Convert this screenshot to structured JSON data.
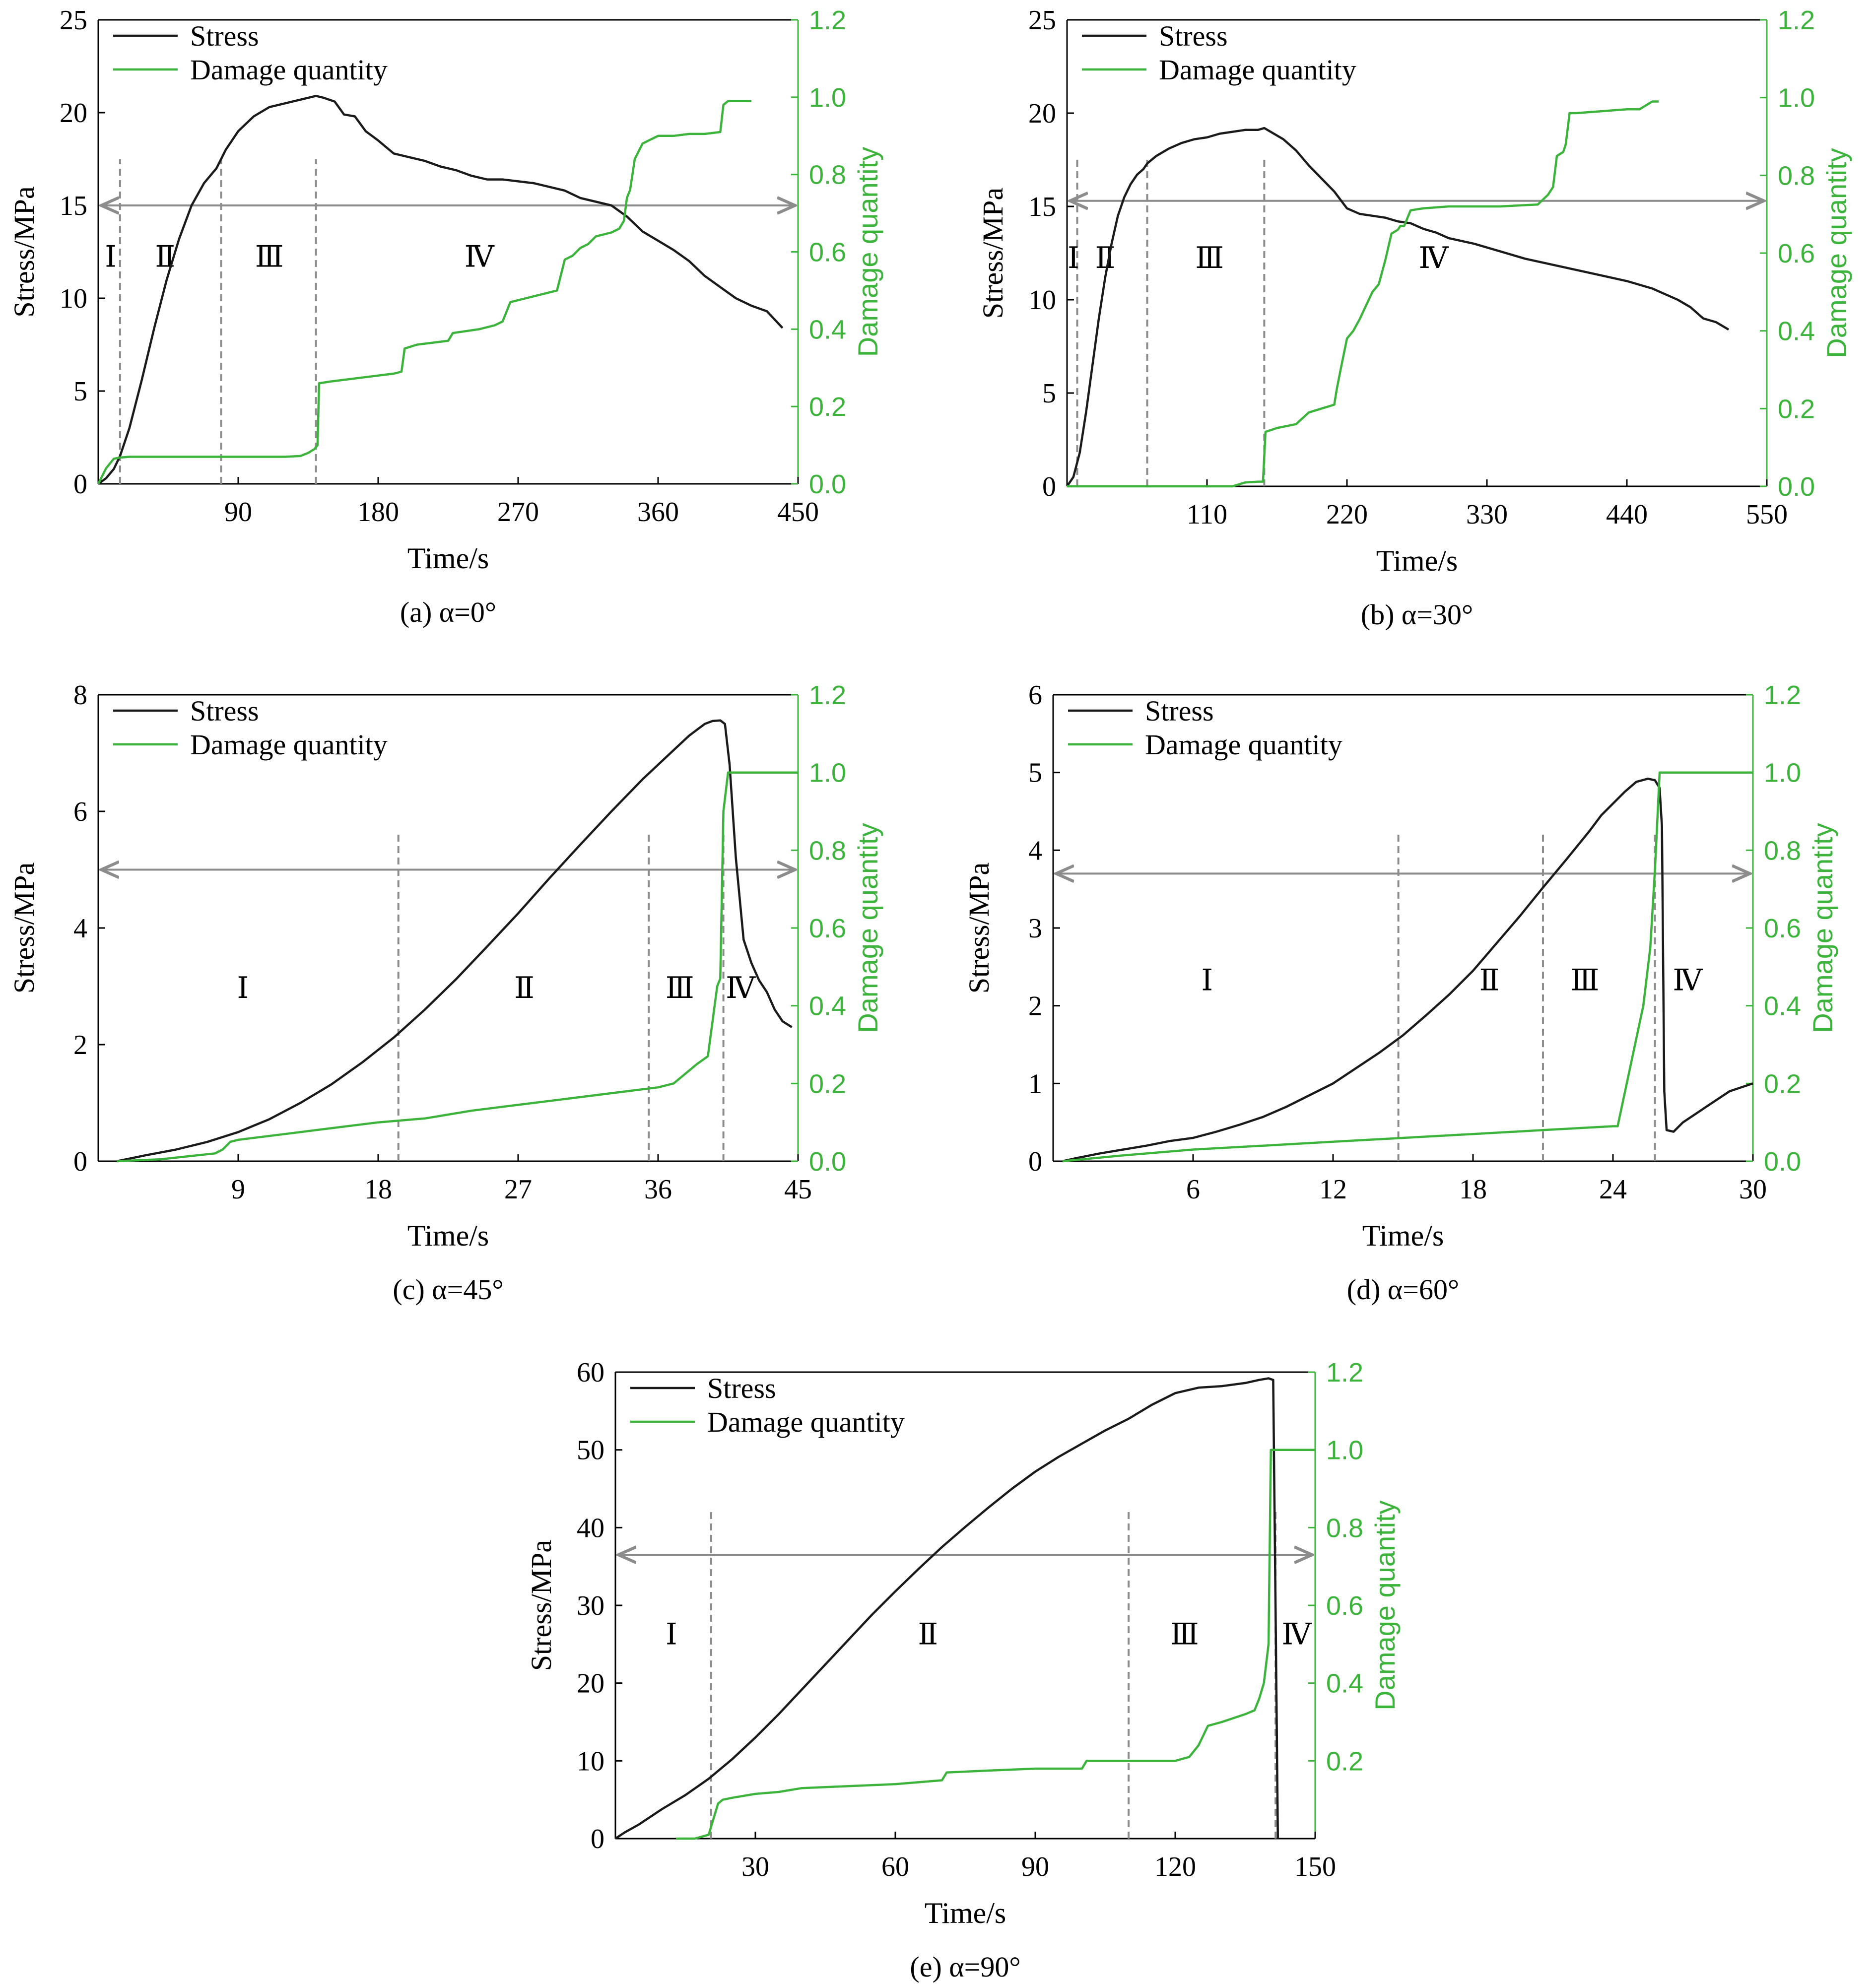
{
  "colors": {
    "stress": "#1a1a1a",
    "damage": "#3cb43c",
    "guide": "#8c8c8c"
  },
  "chart_data": [
    {
      "type": "line",
      "caption": "(a) α=0°",
      "xlabel": "Time/s",
      "ylabel": "Stress/MPa",
      "y2label": "Damage quantity",
      "xlim": [
        0,
        450
      ],
      "ylim": [
        0,
        25
      ],
      "y2lim": [
        0,
        1.2
      ],
      "xticks": [
        90,
        180,
        270,
        360,
        450
      ],
      "yticks": [
        0,
        5,
        10,
        15,
        20,
        25
      ],
      "y2ticks": [
        0,
        0.2,
        0.4,
        0.6,
        0.8,
        1.0,
        1.2
      ],
      "legend": [
        "Stress",
        "Damage quantity"
      ],
      "stages": [
        "Ⅰ",
        "Ⅱ",
        "Ⅲ",
        "Ⅳ"
      ],
      "stage_label_x": [
        8,
        43,
        110,
        245
      ],
      "stage_label_y": 11.7,
      "boundaries": [
        14,
        79,
        140
      ],
      "arrow_y": 15,
      "series": [
        {
          "name": "Stress",
          "axis": "left",
          "x": [
            0,
            5,
            10,
            14,
            20,
            28,
            36,
            44,
            52,
            60,
            68,
            76,
            82,
            90,
            100,
            110,
            120,
            130,
            140,
            145,
            152,
            158,
            165,
            172,
            180,
            190,
            200,
            210,
            220,
            230,
            240,
            250,
            260,
            270,
            280,
            290,
            300,
            310,
            320,
            330,
            340,
            350,
            360,
            370,
            380,
            390,
            400,
            410,
            420,
            430,
            440
          ],
          "values": [
            0,
            0.3,
            0.8,
            1.5,
            3.0,
            5.6,
            8.4,
            11.0,
            13.2,
            15.0,
            16.2,
            17.0,
            18.0,
            19.0,
            19.8,
            20.3,
            20.5,
            20.7,
            20.9,
            20.8,
            20.6,
            19.9,
            19.8,
            19.0,
            18.5,
            17.8,
            17.6,
            17.4,
            17.1,
            16.9,
            16.6,
            16.4,
            16.4,
            16.3,
            16.2,
            16.0,
            15.8,
            15.4,
            15.2,
            15.0,
            14.4,
            13.6,
            13.1,
            12.6,
            12.0,
            11.2,
            10.6,
            10.0,
            9.6,
            9.3,
            8.4
          ]
        },
        {
          "name": "Damage quantity",
          "axis": "right",
          "x": [
            0,
            5,
            10,
            14,
            20,
            40,
            60,
            80,
            100,
            120,
            130,
            135,
            139,
            141,
            142,
            150,
            160,
            170,
            180,
            190,
            195,
            197,
            205,
            215,
            225,
            228,
            245,
            255,
            260,
            265,
            275,
            285,
            295,
            300,
            305,
            310,
            315,
            320,
            325,
            330,
            335,
            338,
            340,
            342,
            345,
            350,
            355,
            360,
            370,
            380,
            390,
            400,
            402,
            405,
            410,
            415,
            420
          ],
          "values": [
            0,
            0.04,
            0.065,
            0.068,
            0.07,
            0.07,
            0.07,
            0.07,
            0.07,
            0.07,
            0.072,
            0.08,
            0.09,
            0.1,
            0.26,
            0.265,
            0.27,
            0.275,
            0.28,
            0.285,
            0.29,
            0.35,
            0.36,
            0.365,
            0.37,
            0.39,
            0.4,
            0.41,
            0.42,
            0.47,
            0.48,
            0.49,
            0.5,
            0.58,
            0.59,
            0.61,
            0.62,
            0.64,
            0.645,
            0.65,
            0.66,
            0.68,
            0.74,
            0.76,
            0.84,
            0.88,
            0.89,
            0.9,
            0.9,
            0.905,
            0.905,
            0.91,
            0.98,
            0.99,
            0.99,
            0.99,
            0.99
          ]
        }
      ]
    },
    {
      "type": "line",
      "caption": "(b) α=30°",
      "xlabel": "Time/s",
      "ylabel": "Stress/MPa",
      "y2label": "Damage quantity",
      "xlim": [
        0,
        550
      ],
      "ylim": [
        0,
        25
      ],
      "y2lim": [
        0,
        1.2
      ],
      "xticks": [
        110,
        220,
        330,
        440,
        550
      ],
      "yticks": [
        0,
        5,
        10,
        15,
        20,
        25
      ],
      "y2ticks": [
        0,
        0.2,
        0.4,
        0.6,
        0.8,
        1.0,
        1.2
      ],
      "legend": [
        "Stress",
        "Damage quantity"
      ],
      "stages": [
        "Ⅰ",
        "Ⅱ",
        "Ⅲ",
        "Ⅳ"
      ],
      "stage_label_x": [
        5,
        30,
        112,
        288
      ],
      "stage_label_y": 11.7,
      "boundaries": [
        8,
        63,
        155
      ],
      "arrow_y": 15.3,
      "series": [
        {
          "name": "Stress",
          "axis": "left",
          "x": [
            0,
            5,
            10,
            15,
            20,
            25,
            30,
            35,
            40,
            45,
            50,
            55,
            60,
            63,
            70,
            80,
            90,
            100,
            110,
            120,
            130,
            140,
            150,
            155,
            160,
            170,
            180,
            190,
            200,
            210,
            220,
            230,
            240,
            250,
            260,
            270,
            280,
            290,
            300,
            320,
            340,
            360,
            380,
            400,
            420,
            440,
            460,
            480,
            490,
            500,
            510,
            520
          ],
          "values": [
            0,
            0.5,
            1.8,
            4.0,
            6.5,
            9.0,
            11.2,
            13.0,
            14.5,
            15.5,
            16.2,
            16.7,
            17.0,
            17.3,
            17.7,
            18.1,
            18.4,
            18.6,
            18.7,
            18.9,
            19.0,
            19.1,
            19.1,
            19.2,
            19.0,
            18.6,
            18.0,
            17.2,
            16.5,
            15.8,
            14.9,
            14.6,
            14.5,
            14.4,
            14.2,
            14.1,
            13.8,
            13.6,
            13.3,
            13.0,
            12.6,
            12.2,
            11.9,
            11.6,
            11.3,
            11.0,
            10.6,
            10.0,
            9.6,
            9.0,
            8.8,
            8.4
          ]
        },
        {
          "name": "Damage quantity",
          "axis": "right",
          "x": [
            0,
            20,
            50,
            80,
            110,
            130,
            140,
            150,
            154,
            156,
            165,
            180,
            190,
            200,
            210,
            212,
            215,
            220,
            225,
            230,
            240,
            245,
            250,
            255,
            260,
            262,
            265,
            270,
            280,
            300,
            340,
            370,
            378,
            382,
            385,
            390,
            392,
            395,
            400,
            420,
            440,
            450,
            455,
            460,
            465
          ],
          "values": [
            0,
            0.0,
            0.0,
            0.0,
            0.0,
            0.0,
            0.01,
            0.012,
            0.012,
            0.14,
            0.15,
            0.16,
            0.19,
            0.2,
            0.21,
            0.25,
            0.3,
            0.38,
            0.4,
            0.43,
            0.5,
            0.52,
            0.58,
            0.65,
            0.66,
            0.67,
            0.67,
            0.71,
            0.715,
            0.72,
            0.72,
            0.725,
            0.75,
            0.77,
            0.85,
            0.86,
            0.88,
            0.96,
            0.96,
            0.965,
            0.97,
            0.97,
            0.98,
            0.99,
            0.99
          ]
        }
      ]
    },
    {
      "type": "line",
      "caption": "(c) α=45°",
      "xlabel": "Time/s",
      "ylabel": "Stress/MPa",
      "y2label": "Damage quantity",
      "xlim": [
        0,
        45
      ],
      "ylim": [
        0,
        8
      ],
      "y2lim": [
        0,
        1.2
      ],
      "xticks": [
        9,
        18,
        27,
        36,
        45
      ],
      "yticks": [
        0,
        2,
        4,
        6,
        8
      ],
      "y2ticks": [
        0,
        0.2,
        0.4,
        0.6,
        0.8,
        1.0,
        1.2
      ],
      "legend": [
        "Stress",
        "Damage quantity"
      ],
      "stages": [
        "Ⅰ",
        "Ⅱ",
        "Ⅲ",
        "Ⅳ"
      ],
      "stage_label_x": [
        9.3,
        27.4,
        37.4,
        41.3
      ],
      "stage_label_y": 2.8,
      "boundaries": [
        19.3,
        35.4,
        40.2
      ],
      "arrow_y": 5,
      "series": [
        {
          "name": "Stress",
          "axis": "left",
          "x": [
            1.2,
            3,
            5,
            7,
            9,
            11,
            13,
            15,
            17,
            19,
            21,
            23,
            25,
            27,
            29,
            31,
            33,
            35,
            37,
            38,
            39,
            39.5,
            40,
            40.3,
            40.6,
            41,
            41.5,
            42,
            42.5,
            43,
            43.5,
            44,
            44.6
          ],
          "values": [
            0,
            0.1,
            0.2,
            0.33,
            0.5,
            0.72,
            1.0,
            1.32,
            1.7,
            2.12,
            2.6,
            3.12,
            3.68,
            4.25,
            4.85,
            5.43,
            6.0,
            6.55,
            7.05,
            7.3,
            7.5,
            7.55,
            7.56,
            7.5,
            6.8,
            5.2,
            3.8,
            3.4,
            3.1,
            2.9,
            2.6,
            2.4,
            2.3
          ]
        },
        {
          "name": "Damage quantity",
          "axis": "right",
          "x": [
            1.2,
            4,
            7.5,
            8,
            8.5,
            9,
            12,
            15,
            18,
            21,
            24,
            27,
            30,
            33,
            36,
            37,
            38.5,
            39.2,
            39.8,
            40,
            40.2,
            40.5,
            42,
            44,
            45
          ],
          "values": [
            0,
            0.005,
            0.02,
            0.03,
            0.05,
            0.055,
            0.07,
            0.085,
            0.1,
            0.11,
            0.13,
            0.145,
            0.16,
            0.175,
            0.19,
            0.2,
            0.25,
            0.27,
            0.45,
            0.47,
            0.9,
            1.0,
            1.0,
            1.0,
            1.0
          ]
        }
      ]
    },
    {
      "type": "line",
      "caption": "(d) α=60°",
      "xlabel": "Time/s",
      "ylabel": "Stress/MPa",
      "y2label": "Damage quantity",
      "xlim": [
        0,
        30
      ],
      "ylim": [
        0,
        6
      ],
      "y2lim": [
        0,
        1.2
      ],
      "xticks": [
        6,
        12,
        18,
        24,
        30
      ],
      "yticks": [
        0,
        1,
        2,
        3,
        4,
        5,
        6
      ],
      "y2ticks": [
        0,
        0.2,
        0.4,
        0.6,
        0.8,
        1.0,
        1.2
      ],
      "legend": [
        "Stress",
        "Damage quantity"
      ],
      "stages": [
        "Ⅰ",
        "Ⅱ",
        "Ⅲ",
        "Ⅳ"
      ],
      "stage_label_x": [
        6.6,
        18.7,
        22.8,
        27.2
      ],
      "stage_label_y": 2.2,
      "boundaries": [
        14.8,
        21.0,
        25.8
      ],
      "arrow_y": 3.7,
      "series": [
        {
          "name": "Stress",
          "axis": "left",
          "x": [
            0.4,
            1,
            2,
            3,
            4,
            5,
            6,
            7,
            8,
            9,
            10,
            11,
            12,
            13,
            14,
            15,
            16,
            17,
            18,
            19,
            20,
            21,
            22,
            23,
            23.5,
            24,
            24.5,
            25,
            25.5,
            25.8,
            26,
            26.1,
            26.2,
            26.3,
            26.6,
            27,
            28,
            29,
            30
          ],
          "values": [
            0,
            0.04,
            0.1,
            0.15,
            0.2,
            0.26,
            0.3,
            0.38,
            0.47,
            0.57,
            0.7,
            0.85,
            1.0,
            1.2,
            1.4,
            1.62,
            1.88,
            2.15,
            2.45,
            2.8,
            3.15,
            3.52,
            3.88,
            4.25,
            4.45,
            4.6,
            4.75,
            4.88,
            4.92,
            4.9,
            4.8,
            4.3,
            0.9,
            0.4,
            0.38,
            0.5,
            0.7,
            0.9,
            1.0
          ]
        },
        {
          "name": "Damage quantity",
          "axis": "right",
          "x": [
            0.4,
            3,
            6,
            9,
            12,
            15,
            18,
            21,
            24,
            24.2,
            25.3,
            25.6,
            25.8,
            26,
            28,
            30
          ],
          "values": [
            0,
            0.015,
            0.03,
            0.04,
            0.05,
            0.06,
            0.07,
            0.08,
            0.09,
            0.09,
            0.4,
            0.55,
            0.75,
            1.0,
            1.0,
            1.0
          ]
        }
      ]
    },
    {
      "type": "line",
      "caption": "(e) α=90°",
      "xlabel": "Time/s",
      "ylabel": "Stress/MPa",
      "y2label": "Damage quantity",
      "xlim": [
        0,
        150
      ],
      "ylim": [
        0,
        60
      ],
      "y2lim": [
        0,
        1.2
      ],
      "xticks": [
        30,
        60,
        90,
        120,
        150
      ],
      "yticks": [
        0,
        10,
        20,
        30,
        40,
        50,
        60
      ],
      "y2ticks": [
        0.2,
        0.4,
        0.6,
        0.8,
        1.0,
        1.2
      ],
      "legend": [
        "Stress",
        "Damage quantity"
      ],
      "stages": [
        "Ⅰ",
        "Ⅱ",
        "Ⅲ",
        "Ⅳ"
      ],
      "stage_label_x": [
        12,
        67,
        122,
        146
      ],
      "stage_label_y": 25,
      "boundaries": [
        20.5,
        110,
        141.5
      ],
      "arrow_y": 36.5,
      "series": [
        {
          "name": "Stress",
          "axis": "left",
          "x": [
            0,
            2,
            5,
            10,
            15,
            20,
            25,
            30,
            35,
            40,
            45,
            50,
            55,
            60,
            65,
            70,
            75,
            80,
            85,
            90,
            95,
            100,
            105,
            110,
            115,
            120,
            125,
            130,
            135,
            138,
            140,
            141,
            141.5,
            142
          ],
          "values": [
            0,
            0.8,
            1.8,
            3.8,
            5.6,
            7.7,
            10.2,
            13.0,
            16.0,
            19.2,
            22.4,
            25.6,
            28.8,
            31.8,
            34.7,
            37.5,
            40.1,
            42.6,
            45.0,
            47.2,
            49.1,
            50.8,
            52.5,
            54.0,
            55.8,
            57.3,
            58.0,
            58.2,
            58.6,
            59.0,
            59.2,
            59.0,
            30,
            0
          ]
        },
        {
          "name": "Damage quantity",
          "axis": "right",
          "x": [
            13,
            17,
            20,
            21,
            22,
            23,
            25,
            30,
            35,
            40,
            50,
            60,
            70,
            71,
            80,
            90,
            100,
            101,
            110,
            120,
            123,
            125,
            127,
            130,
            135,
            137,
            138,
            139,
            140,
            140.5,
            141,
            142,
            150
          ],
          "values": [
            0,
            0.0,
            0.01,
            0.05,
            0.09,
            0.1,
            0.105,
            0.115,
            0.12,
            0.13,
            0.135,
            0.14,
            0.15,
            0.17,
            0.175,
            0.18,
            0.18,
            0.2,
            0.2,
            0.2,
            0.21,
            0.24,
            0.29,
            0.3,
            0.32,
            0.33,
            0.36,
            0.4,
            0.5,
            1.0,
            1.0,
            1.0,
            1.0
          ]
        }
      ]
    }
  ]
}
